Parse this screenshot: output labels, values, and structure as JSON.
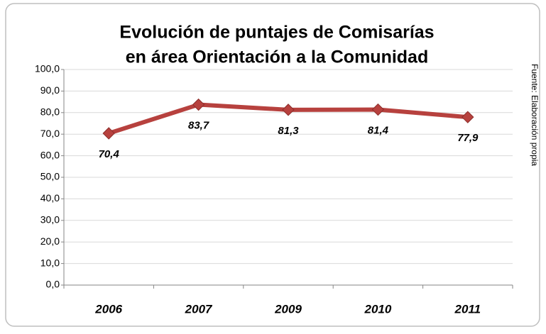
{
  "chart_data": {
    "type": "line",
    "title": [
      "Evolución de puntajes de Comisarías",
      "en área Orientación a la Comunidad"
    ],
    "side_note": "Fuente: Elaboración propia",
    "categories": [
      "2006",
      "2007",
      "2009",
      "2010",
      "2011"
    ],
    "series": [
      {
        "color": "#b7413e",
        "values": [
          70.4,
          83.7,
          81.3,
          81.4,
          77.9
        ],
        "value_labels": [
          "70,4",
          "83,7",
          "81,3",
          "81,4",
          "77,9"
        ]
      }
    ],
    "ylim": [
      0,
      100
    ],
    "yticks": [
      {
        "value": 0,
        "label": "0,0"
      },
      {
        "value": 10,
        "label": "10,0"
      },
      {
        "value": 20,
        "label": "20,0"
      },
      {
        "value": 30,
        "label": "30,0"
      },
      {
        "value": 40,
        "label": "40,0"
      },
      {
        "value": 50,
        "label": "50,0"
      },
      {
        "value": 60,
        "label": "60,0"
      },
      {
        "value": 70,
        "label": "70,0"
      },
      {
        "value": 80,
        "label": "80,0"
      },
      {
        "value": 90,
        "label": "90,0"
      },
      {
        "value": 100,
        "label": "100,0"
      }
    ],
    "grid": true
  }
}
